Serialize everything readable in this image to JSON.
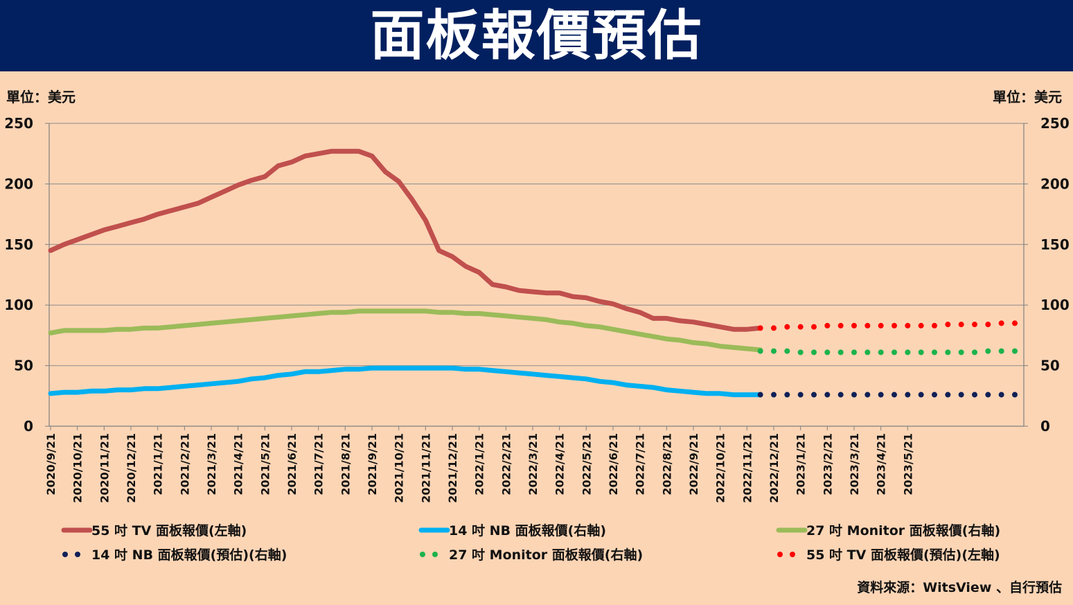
{
  "header": {
    "title": "面板報價預估"
  },
  "unit_left": "單位：美元",
  "unit_right": "單位：美元",
  "source": "資料來源：WitsView 、自行預估",
  "chart_data": {
    "type": "line",
    "title": "面板報價預估",
    "ylim": [
      0,
      250
    ],
    "y_ticks": [
      "0",
      "50",
      "100",
      "150",
      "200",
      "250"
    ],
    "y2_ticks": [
      "0",
      "50",
      "100",
      "150",
      "200",
      "250"
    ],
    "grid": true,
    "legend_position": "bottom",
    "x_tick_labels": [
      "2020/9/21",
      "2020/10/21",
      "2020/11/21",
      "2020/12/21",
      "2021/1/21",
      "2021/2/21",
      "2021/3/21",
      "2021/4/21",
      "2021/5/21",
      "2021/6/21",
      "2021/7/21",
      "2021/8/21",
      "2021/9/21",
      "2021/10/21",
      "2021/11/21",
      "2021/12/21",
      "2022/1/21",
      "2022/2/21",
      "2022/3/21",
      "2022/4/21",
      "2022/5/21",
      "2022/6/21",
      "2022/7/21",
      "2022/8/21",
      "2022/9/21",
      "2022/10/21",
      "2022/11/21",
      "2022/12/21",
      "2023/1/21",
      "2023/2/21",
      "2023/3/21",
      "2023/4/21",
      "2023/5/21"
    ],
    "series": [
      {
        "name": "55 吋 TV 面板報價(左軸)",
        "style": "solid",
        "color": "#C0504D",
        "values": [
          145,
          150,
          154,
          158,
          162,
          165,
          168,
          171,
          175,
          178,
          181,
          184,
          189,
          194,
          199,
          203,
          206,
          215,
          218,
          223,
          225,
          227,
          227,
          227,
          223,
          210,
          202,
          187,
          170,
          145,
          140,
          132,
          127,
          117,
          115,
          112,
          111,
          110,
          110,
          107,
          106,
          103,
          101,
          97,
          94,
          89,
          89,
          87,
          86,
          84,
          82,
          80,
          80,
          81
        ]
      },
      {
        "name": "14 吋 NB 面板報價(右軸)",
        "style": "solid",
        "color": "#00B0F0",
        "values": [
          27,
          28,
          28,
          29,
          29,
          30,
          30,
          31,
          31,
          32,
          33,
          34,
          35,
          36,
          37,
          39,
          40,
          42,
          43,
          45,
          45,
          46,
          47,
          47,
          48,
          48,
          48,
          48,
          48,
          48,
          48,
          47,
          47,
          46,
          45,
          44,
          43,
          42,
          41,
          40,
          39,
          37,
          36,
          34,
          33,
          32,
          30,
          29,
          28,
          27,
          27,
          26,
          26,
          26
        ]
      },
      {
        "name": "27 吋 Monitor 面板報價(右軸)",
        "style": "solid",
        "color": "#9BBB59",
        "values": [
          77,
          79,
          79,
          79,
          79,
          80,
          80,
          81,
          81,
          82,
          83,
          84,
          85,
          86,
          87,
          88,
          89,
          90,
          91,
          92,
          93,
          94,
          94,
          95,
          95,
          95,
          95,
          95,
          95,
          94,
          94,
          93,
          93,
          92,
          91,
          90,
          89,
          88,
          86,
          85,
          83,
          82,
          80,
          78,
          76,
          74,
          72,
          71,
          69,
          68,
          66,
          65,
          64,
          63
        ]
      },
      {
        "name": "14 吋 NB 面板報價(預估)(右軸)",
        "style": "dotted",
        "color": "#0F2057",
        "values": [
          26,
          26,
          26,
          26,
          26,
          26,
          26,
          26,
          26,
          26,
          26,
          26,
          26,
          26,
          26,
          26,
          26,
          26,
          26,
          26
        ]
      },
      {
        "name": "27 吋 Monitor 面板報價(右軸)",
        "style": "dotted",
        "color": "#1BB34B",
        "values": [
          62,
          62,
          62,
          61,
          61,
          61,
          61,
          61,
          61,
          61,
          61,
          61,
          61,
          61,
          61,
          61,
          61,
          62,
          62,
          62
        ]
      },
      {
        "name": "55 吋 TV 面板報價(預估)(左軸)",
        "style": "dotted",
        "color": "#FF0000",
        "values": [
          81,
          81,
          82,
          82,
          82,
          83,
          83,
          83,
          83,
          83,
          83,
          83,
          83,
          83,
          84,
          84,
          84,
          84,
          85,
          85
        ]
      }
    ]
  }
}
